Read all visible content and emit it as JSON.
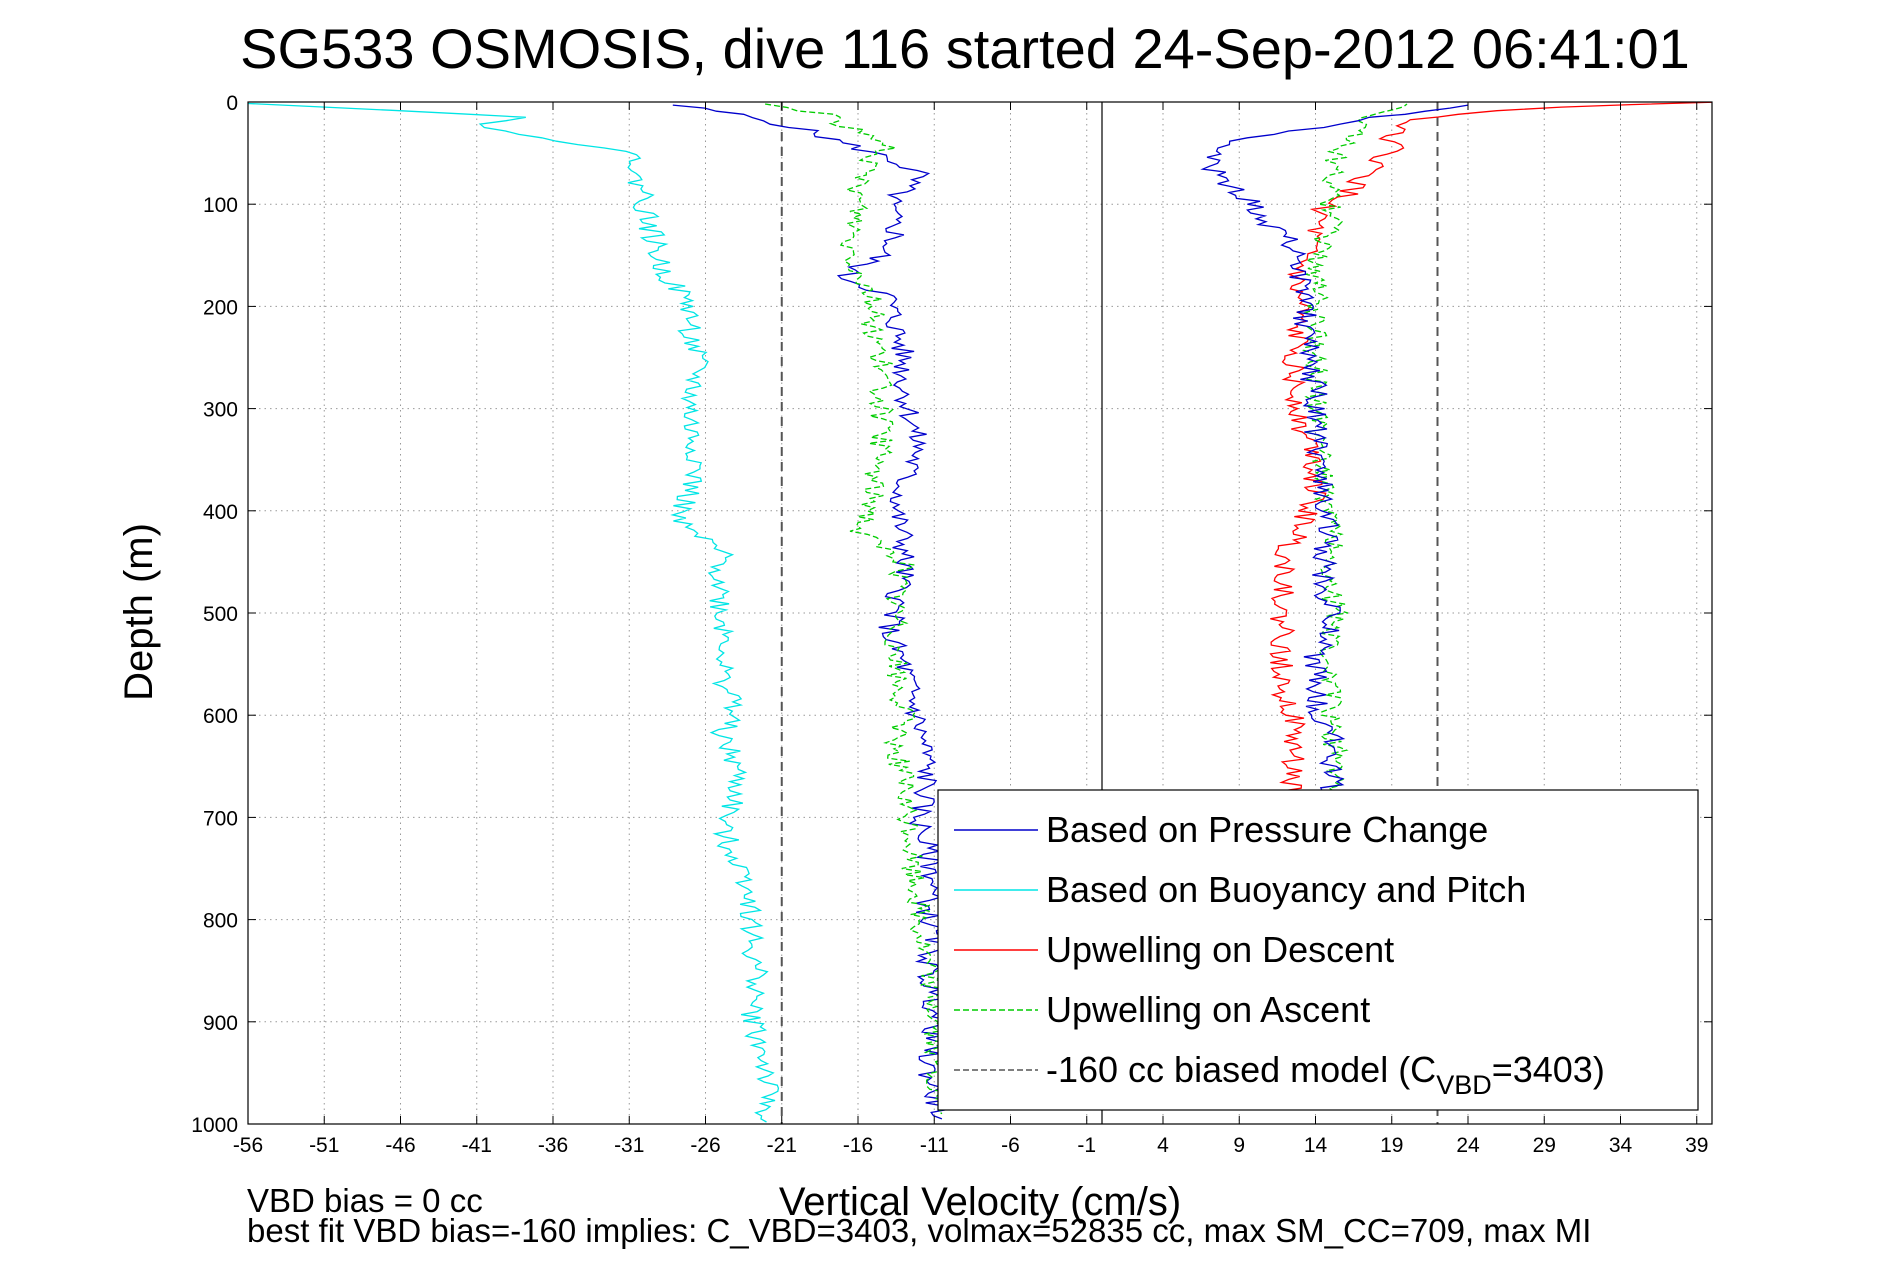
{
  "chart_data": {
    "type": "line",
    "title": "SG533 OSMOSIS, dive 116 started 24-Sep-2012 06:41:01",
    "xlabel": "Vertical Velocity (cm/s)",
    "ylabel": "Depth (m)",
    "xlim": [
      -56,
      40
    ],
    "ylim": [
      0,
      1000
    ],
    "y_reversed": true,
    "grid": true,
    "legend_position": "bottom-right",
    "x_ticks": [
      -56,
      -51,
      -46,
      -41,
      -36,
      -31,
      -26,
      -21,
      -16,
      -11,
      -6,
      -1,
      4,
      9,
      14,
      19,
      24,
      29,
      34,
      39
    ],
    "y_ticks": [
      0,
      100,
      200,
      300,
      400,
      500,
      600,
      700,
      800,
      900,
      1000
    ],
    "zero_line_x": 0,
    "series": [
      {
        "name": "Based on Pressure Change",
        "color": "#0000cc",
        "style": "solid",
        "points": [
          [
            -28,
            3
          ],
          [
            -24,
            12
          ],
          [
            -20,
            25
          ],
          [
            -17,
            40
          ],
          [
            -14,
            55
          ],
          [
            -12,
            70
          ],
          [
            -13,
            85
          ],
          [
            -14,
            100
          ],
          [
            -13.5,
            130
          ],
          [
            -14.5,
            150
          ],
          [
            -17,
            170
          ],
          [
            -14,
            190
          ],
          [
            -13.5,
            220
          ],
          [
            -13,
            250
          ],
          [
            -13,
            280
          ],
          [
            -12.5,
            310
          ],
          [
            -12,
            340
          ],
          [
            -13,
            370
          ],
          [
            -13.5,
            400
          ],
          [
            -13,
            430
          ],
          [
            -13,
            460
          ],
          [
            -13.5,
            490
          ],
          [
            -14,
            520
          ],
          [
            -13,
            550
          ],
          [
            -12.5,
            580
          ],
          [
            -12,
            610
          ],
          [
            -11.5,
            640
          ],
          [
            -11.5,
            670
          ],
          [
            -12,
            700
          ],
          [
            -11.5,
            730
          ],
          [
            -11,
            760
          ],
          [
            -11.5,
            790
          ],
          [
            -11,
            820
          ],
          [
            -11.5,
            850
          ],
          [
            -11,
            880
          ],
          [
            -11,
            910
          ],
          [
            -11.5,
            940
          ],
          [
            -11,
            970
          ],
          [
            -10.5,
            995
          ]
        ]
      },
      {
        "name": "Based on Buoyancy and Pitch",
        "color": "#00e5e5",
        "style": "solid",
        "points": [
          [
            -56,
            1
          ],
          [
            -46,
            8
          ],
          [
            -38,
            15
          ],
          [
            -41,
            25
          ],
          [
            -36,
            35
          ],
          [
            -33,
            45
          ],
          [
            -30,
            55
          ],
          [
            -31,
            70
          ],
          [
            -30,
            85
          ],
          [
            -30,
            100
          ],
          [
            -29.5,
            130
          ],
          [
            -29,
            160
          ],
          [
            -28,
            180
          ],
          [
            -27,
            200
          ],
          [
            -27,
            230
          ],
          [
            -26.5,
            260
          ],
          [
            -27,
            290
          ],
          [
            -27,
            320
          ],
          [
            -26.5,
            350
          ],
          [
            -27,
            380
          ],
          [
            -28,
            410
          ],
          [
            -25,
            440
          ],
          [
            -25,
            470
          ],
          [
            -25,
            500
          ],
          [
            -24.5,
            530
          ],
          [
            -25,
            560
          ],
          [
            -24,
            590
          ],
          [
            -25,
            620
          ],
          [
            -24,
            650
          ],
          [
            -24,
            680
          ],
          [
            -25,
            710
          ],
          [
            -24,
            740
          ],
          [
            -23,
            770
          ],
          [
            -23,
            800
          ],
          [
            -23,
            830
          ],
          [
            -22.5,
            860
          ],
          [
            -23,
            890
          ],
          [
            -22.5,
            920
          ],
          [
            -22,
            950
          ],
          [
            -22,
            980
          ],
          [
            -22,
            998
          ]
        ]
      },
      {
        "name": "Upwelling on Descent",
        "color": "#ff0000",
        "style": "solid",
        "points": [
          [
            40,
            0
          ],
          [
            30,
            5
          ],
          [
            23,
            12
          ],
          [
            20,
            20
          ],
          [
            19,
            30
          ],
          [
            19,
            45
          ],
          [
            18,
            60
          ],
          [
            17,
            75
          ],
          [
            16,
            90
          ],
          [
            14.5,
            105
          ],
          [
            14,
            120
          ],
          [
            13.5,
            140
          ],
          [
            13,
            160
          ],
          [
            12.5,
            180
          ],
          [
            13,
            200
          ],
          [
            12.5,
            220
          ],
          [
            13,
            240
          ],
          [
            12.5,
            260
          ],
          [
            12.5,
            280
          ],
          [
            13,
            300
          ],
          [
            13,
            320
          ],
          [
            14,
            340
          ],
          [
            14,
            360
          ],
          [
            14,
            380
          ],
          [
            13.5,
            400
          ],
          [
            13,
            420
          ],
          [
            12,
            440
          ],
          [
            12,
            460
          ],
          [
            12,
            480
          ],
          [
            11.5,
            500
          ],
          [
            12,
            520
          ],
          [
            11.5,
            540
          ],
          [
            12,
            560
          ],
          [
            12,
            580
          ],
          [
            12.5,
            600
          ],
          [
            12.5,
            620
          ],
          [
            12.5,
            640
          ],
          [
            12.5,
            660
          ],
          [
            12.5,
            680
          ]
        ]
      },
      {
        "name": "Upwelling on Ascent",
        "color": "#00cc00",
        "style": "dashed",
        "points": [
          [
            -22,
            2
          ],
          [
            -18,
            12
          ],
          [
            -16,
            30
          ],
          [
            -14,
            45
          ],
          [
            -15.5,
            60
          ],
          [
            -16,
            80
          ],
          [
            -16,
            110
          ],
          [
            -16.5,
            140
          ],
          [
            -16,
            165
          ],
          [
            -15,
            190
          ],
          [
            -15,
            220
          ],
          [
            -14.5,
            250
          ],
          [
            -14.5,
            280
          ],
          [
            -14.5,
            310
          ],
          [
            -14.5,
            340
          ],
          [
            -15,
            370
          ],
          [
            -15,
            400
          ],
          [
            -16,
            420
          ],
          [
            -13,
            450
          ],
          [
            -13.5,
            480
          ],
          [
            -13.5,
            510
          ],
          [
            -13.5,
            540
          ],
          [
            -13.5,
            570
          ],
          [
            -13,
            600
          ],
          [
            -13.5,
            630
          ],
          [
            -13,
            660
          ],
          [
            -13,
            690
          ],
          [
            -12.5,
            720
          ],
          [
            -12.5,
            750
          ],
          [
            -12,
            780
          ],
          [
            -12,
            810
          ],
          [
            -11.5,
            840
          ],
          [
            -11,
            870
          ],
          [
            -11,
            900
          ],
          [
            -11,
            930
          ],
          [
            -11,
            960
          ],
          [
            -10.5,
            990
          ]
        ]
      },
      {
        "name": "Upwelling on Ascent (ascent)",
        "color": "#00cc00",
        "style": "dashed",
        "points": [
          [
            15,
            680
          ],
          [
            15,
            660
          ],
          [
            15.5,
            640
          ],
          [
            15,
            620
          ],
          [
            15,
            600
          ],
          [
            15,
            580
          ],
          [
            15,
            560
          ],
          [
            15,
            540
          ],
          [
            15,
            520
          ],
          [
            15.5,
            500
          ],
          [
            15,
            480
          ],
          [
            15,
            460
          ],
          [
            15,
            440
          ],
          [
            15,
            420
          ],
          [
            15,
            400
          ],
          [
            14.5,
            380
          ],
          [
            14.5,
            360
          ],
          [
            14.5,
            340
          ],
          [
            14,
            320
          ],
          [
            14,
            300
          ],
          [
            14,
            280
          ],
          [
            14,
            260
          ],
          [
            14,
            240
          ],
          [
            14,
            220
          ],
          [
            14,
            200
          ],
          [
            14,
            180
          ],
          [
            14,
            160
          ],
          [
            14.5,
            140
          ],
          [
            15,
            120
          ],
          [
            15,
            100
          ],
          [
            15,
            80
          ],
          [
            15,
            60
          ],
          [
            16,
            40
          ],
          [
            17,
            25
          ],
          [
            18,
            10
          ],
          [
            20,
            2
          ]
        ]
      },
      {
        "name": "Based on Pressure Change (ascent)",
        "color": "#0000cc",
        "style": "solid",
        "points": [
          [
            15,
            680
          ],
          [
            15,
            650
          ],
          [
            15.5,
            620
          ],
          [
            14,
            600
          ],
          [
            14,
            580
          ],
          [
            14,
            560
          ],
          [
            14,
            540
          ],
          [
            15,
            520
          ],
          [
            15,
            500
          ],
          [
            14.5,
            480
          ],
          [
            14.5,
            460
          ],
          [
            14.5,
            440
          ],
          [
            15,
            420
          ],
          [
            14.5,
            400
          ],
          [
            14.5,
            380
          ],
          [
            14,
            360
          ],
          [
            14,
            340
          ],
          [
            14,
            320
          ],
          [
            14,
            300
          ],
          [
            14,
            280
          ],
          [
            13.5,
            260
          ],
          [
            13.5,
            240
          ],
          [
            13,
            220
          ],
          [
            13.5,
            200
          ],
          [
            13,
            180
          ],
          [
            13,
            160
          ],
          [
            12.5,
            140
          ],
          [
            11,
            120
          ],
          [
            10,
            100
          ],
          [
            8,
            80
          ],
          [
            7,
            60
          ],
          [
            7,
            45
          ],
          [
            10,
            35
          ],
          [
            14,
            25
          ],
          [
            18,
            15
          ],
          [
            24,
            3
          ]
        ]
      }
    ],
    "model_lines": [
      {
        "name": "-160 cc biased model",
        "x": -21
      },
      {
        "name": "-160 cc biased model",
        "x": 22
      }
    ],
    "legend": {
      "entries": [
        {
          "label": "Based on Pressure Change",
          "color": "#0000cc",
          "style": "solid"
        },
        {
          "label": "Based on Buoyancy and Pitch",
          "color": "#00e5e5",
          "style": "solid"
        },
        {
          "label": "Upwelling on Descent",
          "color": "#ff0000",
          "style": "solid"
        },
        {
          "label": "Upwelling on Ascent",
          "color": "#00cc00",
          "style": "dashed"
        },
        {
          "label": "-160 cc biased model (C",
          "sub": "VBD",
          "suffix": "=3403)",
          "color": "#555555",
          "style": "dashed"
        }
      ]
    },
    "notes": {
      "vbd_bias": "VBD bias = 0 cc",
      "best_fit": "best fit VBD bias=-160 implies: C_VBD=3403, volmax=52835 cc, max SM_CC=709, max MI"
    }
  }
}
